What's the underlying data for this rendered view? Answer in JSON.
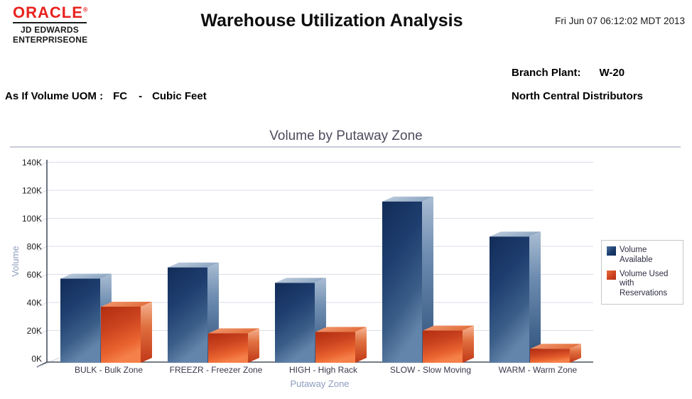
{
  "header": {
    "logo": {
      "brand": "ORACLE",
      "registered_mark": "®",
      "line1": "JD EDWARDS",
      "line2": "ENTERPRISEONE",
      "brand_color": "#e8221e"
    },
    "title": "Warehouse Utilization Analysis",
    "datetime": "Fri Jun 07 06:12:02 MDT 2013"
  },
  "report_info": {
    "branch_plant_label": "Branch Plant:",
    "branch_plant_value": "W-20",
    "branch_plant_name": "North Central Distributors",
    "uom_label": "As If Volume UOM :",
    "uom_code": "FC",
    "uom_separator": "-",
    "uom_description": "Cubic Feet"
  },
  "chart_data": {
    "type": "bar",
    "subtype": "3d-grouped-column",
    "title": "Volume by Putaway Zone",
    "xlabel": "Putaway Zone",
    "ylabel": "Volume",
    "categories": [
      "BULK - Bulk Zone",
      "FREEZR - Freezer Zone",
      "HIGH - High Rack",
      "SLOW - Slow Moving",
      "WARM - Warm Zone"
    ],
    "series": [
      {
        "name": "Volume Available",
        "color": "#1c3c6e",
        "values": [
          60000,
          68000,
          57000,
          115000,
          90000
        ]
      },
      {
        "name": "Volume Used with Reservations",
        "color": "#cf4520",
        "values": [
          40000,
          21000,
          22000,
          23000,
          10000
        ]
      }
    ],
    "ylim": [
      0,
      140000
    ],
    "ytick_step": 20000,
    "ytick_suffix": "K",
    "grid": true,
    "legend_position": "right"
  }
}
